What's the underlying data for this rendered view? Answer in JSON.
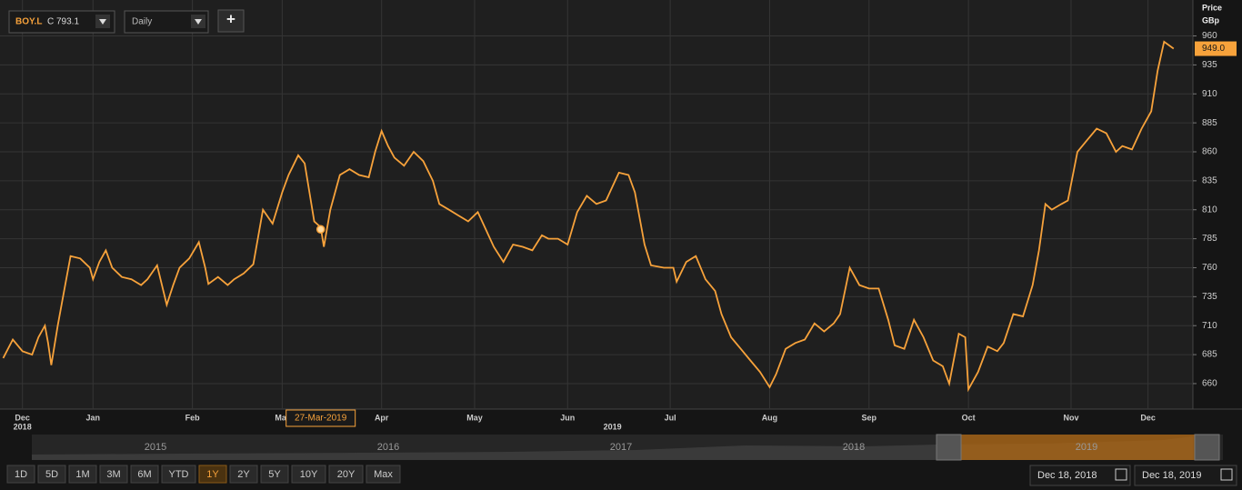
{
  "header": {
    "symbol": "BOY.L",
    "close_label": "C 793.1",
    "interval": "Daily",
    "add": "+"
  },
  "chart_data": {
    "type": "line",
    "color": "#f7a23b",
    "grid": true,
    "axis_title": "Price",
    "axis_unit": "GBp",
    "x": [
      0,
      3,
      6,
      9,
      11,
      13,
      14,
      15,
      17,
      19,
      21,
      24,
      27,
      28,
      30,
      32,
      34,
      37,
      40,
      43,
      45,
      48,
      51,
      53,
      55,
      58,
      61,
      63,
      64,
      67,
      70,
      72,
      75,
      78,
      81,
      84,
      87,
      89,
      92,
      94,
      97,
      99,
      100,
      102,
      105,
      108,
      111,
      114,
      116,
      118,
      120,
      122,
      125,
      128,
      131,
      134,
      136,
      139,
      142,
      145,
      148,
      151,
      153,
      156,
      159,
      162,
      165,
      168,
      170,
      173,
      176,
      179,
      182,
      185,
      188,
      190,
      192,
      195,
      197,
      200,
      202,
      206,
      209,
      210,
      213,
      216,
      219,
      222,
      224,
      227,
      230,
      233,
      236,
      239,
      241,
      244,
      247,
      250,
      253,
      256,
      259,
      261,
      264,
      267,
      270,
      273,
      276,
      278,
      281,
      284,
      287,
      290,
      293,
      295,
      298,
      300,
      301,
      304,
      307,
      310,
      312,
      315,
      318,
      321,
      323,
      325,
      327,
      330,
      332,
      335,
      338,
      341,
      344,
      347,
      349,
      352,
      355,
      358,
      360,
      362,
      365
    ],
    "values": [
      682,
      698,
      688,
      685,
      700,
      710,
      695,
      676,
      710,
      740,
      770,
      768,
      760,
      750,
      765,
      775,
      760,
      752,
      750,
      745,
      750,
      762,
      728,
      745,
      760,
      768,
      782,
      760,
      746,
      752,
      745,
      750,
      755,
      763,
      810,
      798,
      825,
      840,
      857,
      850,
      800,
      795,
      778,
      810,
      840,
      845,
      840,
      838,
      860,
      878,
      865,
      855,
      848,
      860,
      852,
      835,
      815,
      810,
      805,
      800,
      808,
      790,
      778,
      765,
      780,
      778,
      775,
      788,
      785,
      785,
      780,
      808,
      822,
      815,
      818,
      830,
      842,
      840,
      825,
      780,
      762,
      760,
      760,
      748,
      765,
      770,
      750,
      740,
      720,
      700,
      690,
      680,
      670,
      657,
      668,
      690,
      695,
      698,
      712,
      705,
      712,
      720,
      760,
      745,
      742,
      742,
      715,
      693,
      690,
      715,
      700,
      680,
      675,
      660,
      703,
      700,
      655,
      670,
      692,
      688,
      695,
      720,
      718,
      745,
      775,
      815,
      810,
      815,
      818,
      860,
      870,
      880,
      876,
      860,
      865,
      862,
      880,
      895,
      930,
      955,
      949
    ],
    "xlim": [
      -1,
      371
    ],
    "ylim": [
      638,
      991
    ],
    "yticks": [
      660,
      685,
      710,
      735,
      760,
      785,
      810,
      835,
      860,
      885,
      910,
      935,
      960
    ],
    "xticks": [
      {
        "value": 6,
        "label": "Dec"
      },
      {
        "value": 28,
        "label": "Jan"
      },
      {
        "value": 59,
        "label": "Feb"
      },
      {
        "value": 87,
        "label": "Mar"
      },
      {
        "value": 118,
        "label": "Apr"
      },
      {
        "value": 147,
        "label": "May"
      },
      {
        "value": 176,
        "label": "Jun"
      },
      {
        "value": 208,
        "label": "Jul"
      },
      {
        "value": 239,
        "label": "Aug"
      },
      {
        "value": 270,
        "label": "Sep"
      },
      {
        "value": 301,
        "label": "Oct"
      },
      {
        "value": 333,
        "label": "Nov"
      },
      {
        "value": 357,
        "label": "Dec"
      }
    ],
    "year_labels": [
      {
        "value": 6,
        "label": "2018"
      },
      {
        "value": 190,
        "label": "2019"
      }
    ],
    "last_price": {
      "value": 949,
      "label": "949.0"
    },
    "marker": {
      "x": 99,
      "value": 793.1,
      "label": "27-Mar-2019"
    }
  },
  "navigator": {
    "years": [
      "2015",
      "2016",
      "2017",
      "2018",
      "2019"
    ]
  },
  "range_buttons": [
    "1D",
    "5D",
    "1M",
    "3M",
    "6M",
    "YTD",
    "1Y",
    "2Y",
    "5Y",
    "10Y",
    "20Y",
    "Max"
  ],
  "selected_range": "1Y",
  "date_from": "Dec 18, 2018",
  "date_to": "Dec 18, 2019"
}
